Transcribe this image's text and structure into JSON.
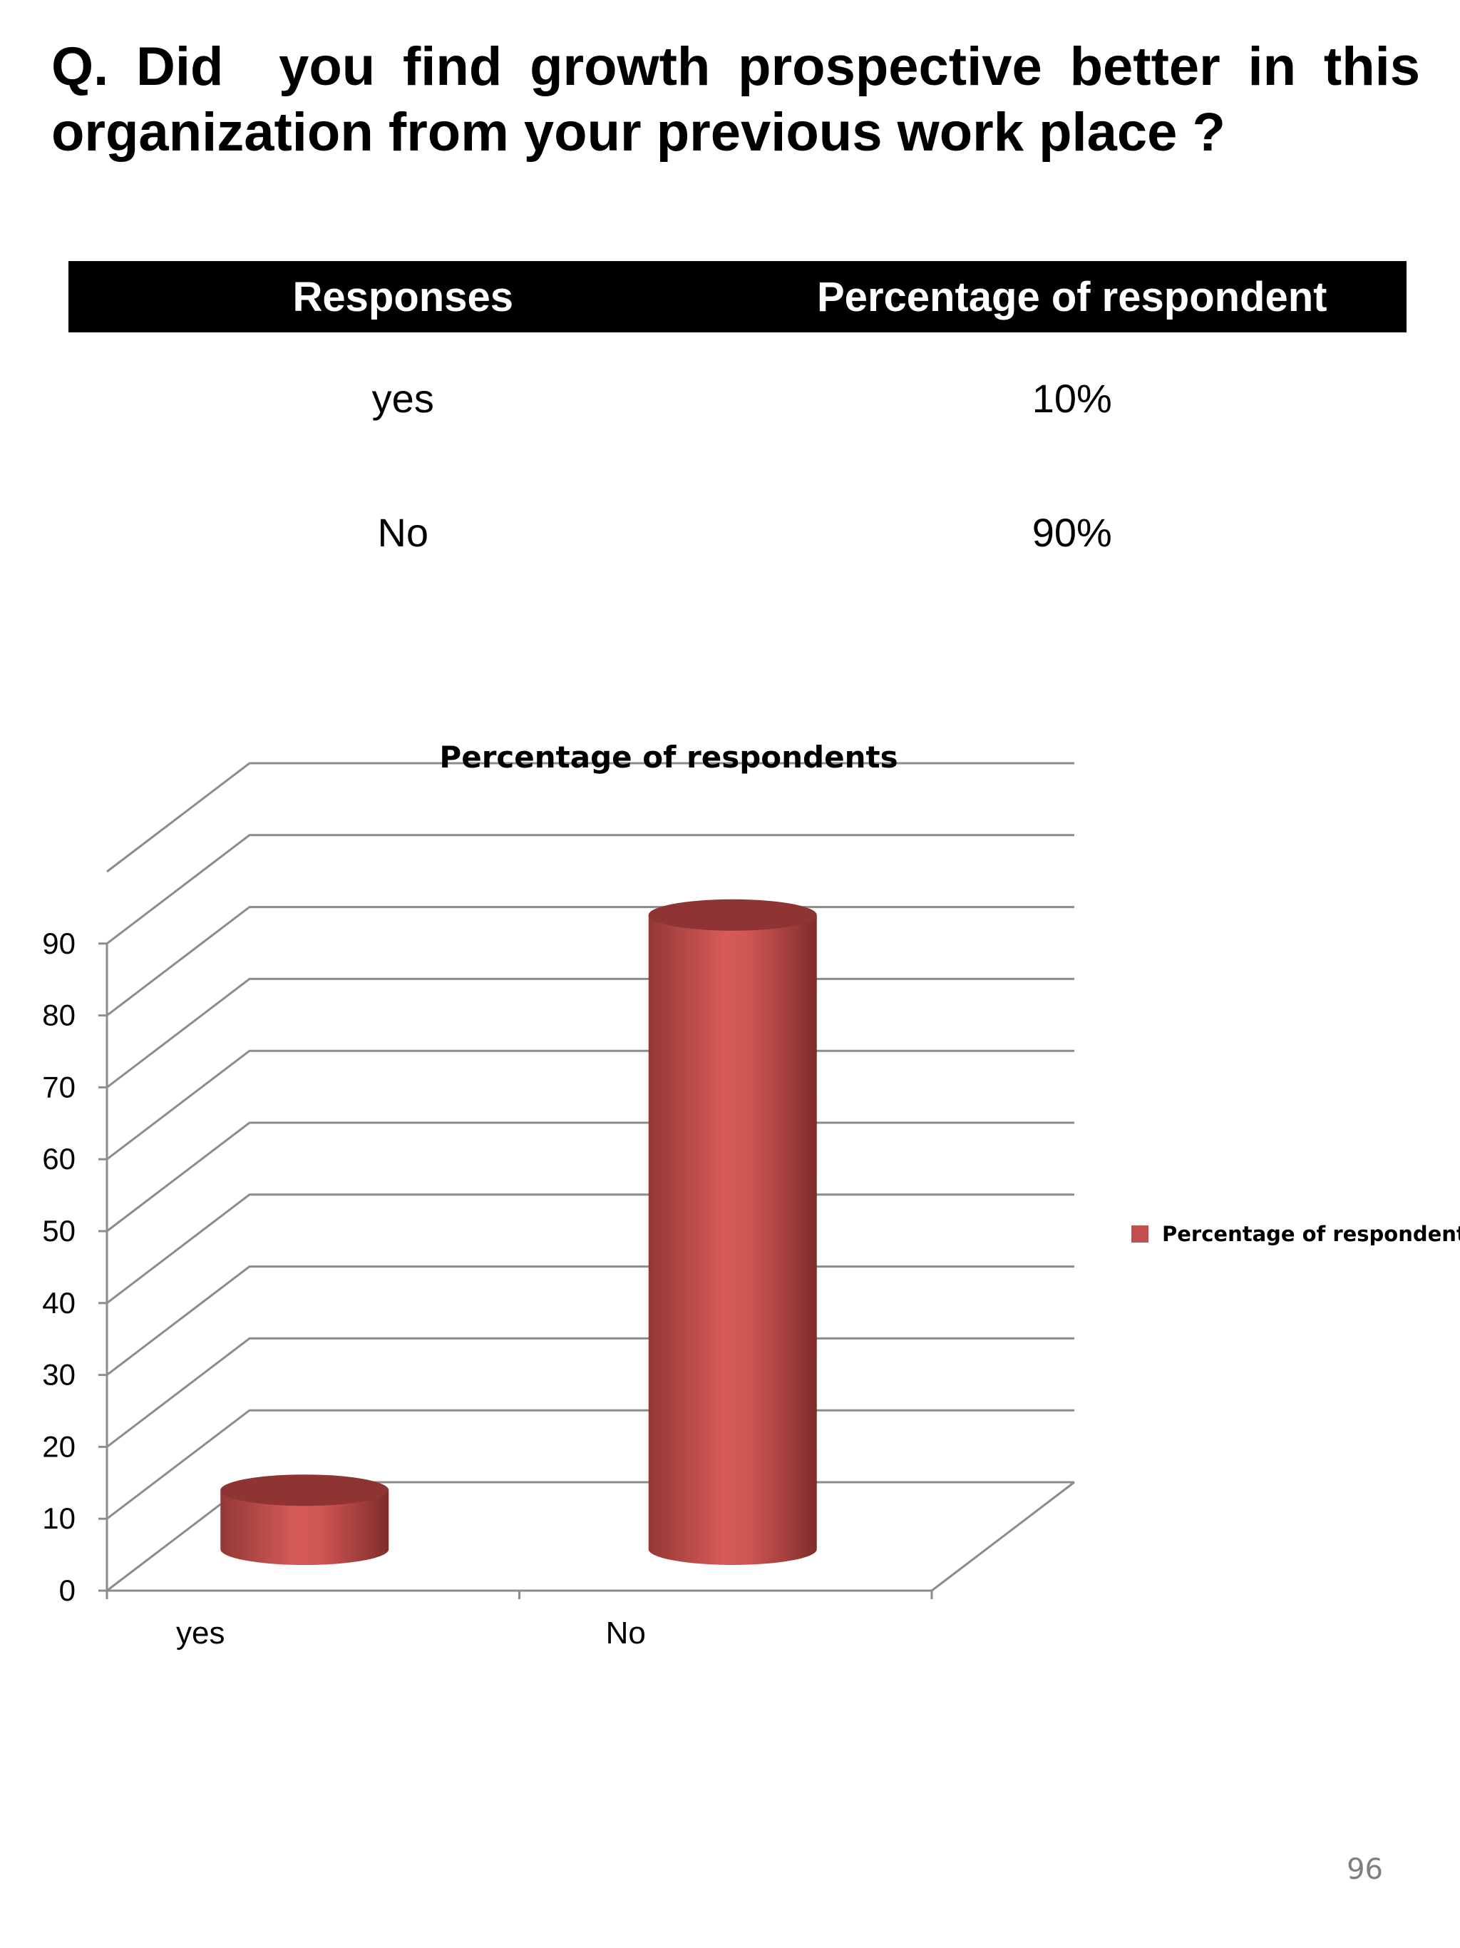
{
  "question": "Q. Did  you find growth prospective better in this organization from your previous work place ?",
  "table": {
    "headers": [
      "Responses",
      "Percentage of respondent"
    ],
    "rows": [
      {
        "response": "yes",
        "percentage": "10%"
      },
      {
        "response": "No",
        "percentage": "90%"
      }
    ]
  },
  "chart_data": {
    "type": "bar",
    "title": "Percentage of respondents",
    "categories": [
      "yes",
      "No"
    ],
    "series": [
      {
        "name": "Percentage of respondents",
        "values": [
          10,
          90
        ],
        "color": "#C0504D"
      }
    ],
    "yticks": [
      0,
      10,
      20,
      30,
      40,
      50,
      60,
      70,
      80,
      90
    ],
    "ylim": [
      0,
      100
    ],
    "grid": true,
    "legend": "right",
    "style": "3d-cylinder"
  },
  "page_number": "96"
}
